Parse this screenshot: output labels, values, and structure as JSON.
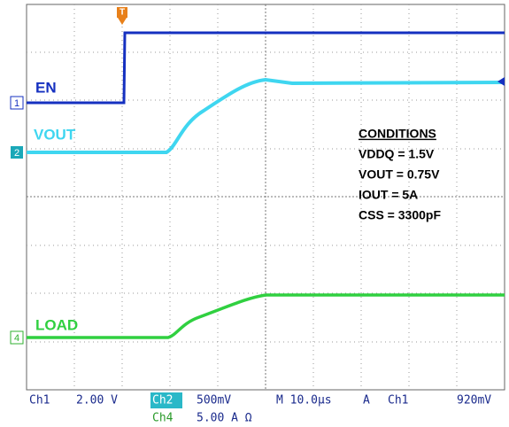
{
  "channels": [
    {
      "marker": "1",
      "label": "EN"
    },
    {
      "marker": "2",
      "label": "VOUT"
    },
    {
      "marker": "4",
      "label": "LOAD"
    }
  ],
  "trigger": "T",
  "conditions": {
    "title": "CONDITIONS",
    "lines": [
      "VDDQ = 1.5V",
      "VOUT = 0.75V",
      "IOUT = 5A",
      "CSS = 3300pF"
    ]
  },
  "status": {
    "ch1": "Ch1",
    "ch1_scale": "2.00 V",
    "ch2": "Ch2",
    "ch2_scale": "500mV",
    "ch4": "Ch4",
    "ch4_scale": "5.00 A Ω",
    "timebase": "M 10.0µs",
    "trigger_mode": "A",
    "trigger_source": "Ch1",
    "trigger_level": "920mV"
  }
}
